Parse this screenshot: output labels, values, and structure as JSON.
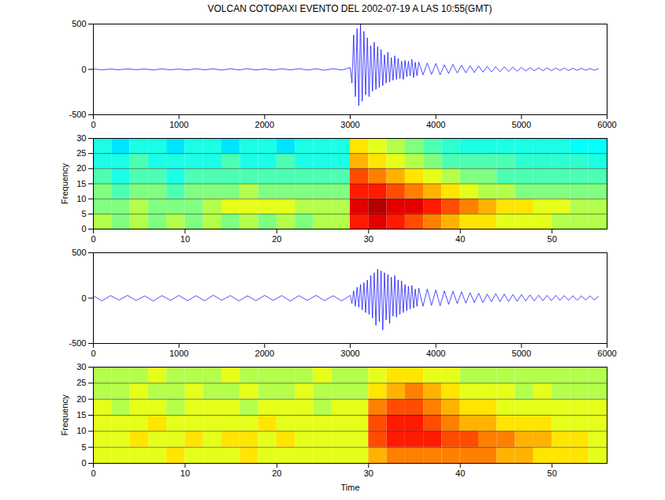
{
  "chart_data": [
    {
      "type": "line",
      "title": "VOLCAN COTOPAXI EVENTO DEL 2002-07-19 A LAS 10:55(GMT)",
      "x": [
        0,
        100,
        200,
        300,
        400,
        500,
        600,
        700,
        800,
        900,
        1000,
        1100,
        1200,
        1300,
        1400,
        1500,
        1600,
        1700,
        1800,
        1900,
        2000,
        2100,
        2200,
        2300,
        2400,
        2500,
        2600,
        2700,
        2800,
        2900,
        3000,
        3020,
        3040,
        3060,
        3080,
        3100,
        3120,
        3140,
        3160,
        3180,
        3200,
        3220,
        3240,
        3260,
        3280,
        3300,
        3320,
        3340,
        3360,
        3380,
        3400,
        3420,
        3440,
        3460,
        3480,
        3500,
        3520,
        3540,
        3560,
        3580,
        3600,
        3620,
        3640,
        3660,
        3680,
        3700,
        3720,
        3740,
        3760,
        3780,
        3800,
        3850,
        3900,
        3950,
        4000,
        4050,
        4100,
        4150,
        4200,
        4250,
        4300,
        4350,
        4400,
        4450,
        4500,
        4550,
        4600,
        4650,
        4700,
        4750,
        4800,
        4850,
        4900,
        4950,
        5000,
        5050,
        5100,
        5150,
        5200,
        5250,
        5300,
        5350,
        5400,
        5450,
        5500,
        5550,
        5600,
        5650,
        5700,
        5750,
        5800,
        5850,
        5900
      ],
      "values": [
        5,
        -6,
        4,
        -5,
        6,
        -4,
        5,
        -7,
        6,
        -5,
        4,
        -6,
        7,
        -5,
        6,
        -8,
        7,
        -6,
        8,
        -7,
        6,
        -8,
        7,
        -6,
        8,
        -7,
        6,
        -9,
        8,
        -7,
        20,
        -150,
        380,
        -300,
        450,
        -400,
        500,
        -350,
        420,
        -280,
        350,
        -300,
        260,
        -240,
        300,
        -220,
        250,
        -200,
        220,
        -180,
        160,
        -150,
        190,
        -140,
        130,
        -120,
        150,
        -110,
        120,
        -100,
        90,
        -110,
        100,
        -80,
        90,
        -70,
        110,
        -90,
        80,
        -70,
        80,
        -60,
        70,
        -55,
        65,
        -60,
        50,
        -45,
        55,
        -40,
        45,
        -38,
        40,
        -35,
        38,
        -30,
        32,
        -28,
        30,
        -25,
        28,
        -22,
        25,
        -20,
        22,
        -18,
        20,
        -16,
        18,
        -15,
        16,
        -14,
        15,
        -12,
        14,
        -12,
        12,
        -10,
        12,
        -10,
        10,
        -9,
        8
      ],
      "color": "#0000ff",
      "xlim": [
        0,
        6000
      ],
      "xticks": [
        0,
        1000,
        2000,
        3000,
        4000,
        5000,
        6000
      ],
      "ylim": [
        -500,
        500
      ],
      "yticks": [
        -500,
        0,
        500
      ]
    },
    {
      "type": "heatmap",
      "ylabel": "Frequency",
      "x_bins": [
        0,
        2,
        4,
        6,
        8,
        10,
        12,
        14,
        16,
        18,
        20,
        22,
        24,
        26,
        28,
        30,
        32,
        34,
        36,
        38,
        40,
        42,
        44,
        46,
        48,
        50,
        52,
        54,
        56
      ],
      "y_bins": [
        0,
        5,
        10,
        15,
        20,
        25,
        30
      ],
      "values": [
        [
          5.5,
          5,
          5.5,
          5,
          5.5,
          5,
          5.5,
          5,
          5.5,
          5,
          5.5,
          5,
          5.5,
          5.5,
          8.5,
          9,
          8.5,
          8,
          7.5,
          7,
          6.5,
          6.5,
          6,
          6,
          6,
          5.5,
          5.5,
          5.5
        ],
        [
          5,
          5,
          5.5,
          5,
          5,
          5,
          5.5,
          6,
          6,
          6,
          6,
          5.5,
          5.5,
          5.5,
          9,
          9.5,
          9,
          9,
          8.5,
          8,
          7.5,
          7,
          6.5,
          6.5,
          6,
          6,
          5.5,
          5.5
        ],
        [
          5,
          4.5,
          5,
          5,
          4.5,
          5,
          5,
          5,
          5.5,
          5,
          5,
          5,
          5,
          5,
          8.5,
          8.5,
          8,
          7.5,
          7,
          6.5,
          6,
          5.5,
          5.5,
          5,
          5,
          5,
          5,
          5
        ],
        [
          4.5,
          4,
          4.5,
          4.5,
          4,
          4.5,
          4.5,
          4.5,
          4.5,
          4.5,
          4.5,
          4.5,
          4.5,
          4.5,
          8,
          7.5,
          7,
          6.5,
          6,
          5.5,
          5,
          5,
          4.5,
          4.5,
          4.5,
          4.5,
          4.5,
          4.5
        ],
        [
          4,
          4,
          4.5,
          4,
          4,
          4,
          4,
          4.5,
          4,
          4,
          4.5,
          4,
          4,
          4,
          7,
          6.5,
          6,
          5.5,
          5,
          4.5,
          4.5,
          4.5,
          4.5,
          4.2,
          4.2,
          4.2,
          4.2,
          4
        ],
        [
          4,
          3.5,
          4,
          4,
          3.5,
          4,
          4,
          3.5,
          4,
          4,
          3.5,
          4,
          4,
          4,
          6.5,
          6,
          5.5,
          5,
          4.5,
          4.2,
          4,
          4,
          4,
          4,
          4,
          4,
          3.8,
          3.8
        ]
      ],
      "zlim": [
        0,
        10
      ],
      "xlim": [
        0,
        56
      ],
      "xticks": [
        0,
        10,
        20,
        30,
        40,
        50
      ],
      "ylim": [
        0,
        30
      ],
      "yticks": [
        0,
        5,
        10,
        15,
        20,
        25,
        30
      ],
      "grid": true
    },
    {
      "type": "line",
      "x": [
        0,
        100,
        200,
        300,
        400,
        500,
        600,
        700,
        800,
        900,
        1000,
        1100,
        1200,
        1300,
        1400,
        1500,
        1600,
        1700,
        1800,
        1900,
        2000,
        2100,
        2200,
        2300,
        2400,
        2500,
        2600,
        2700,
        2800,
        2900,
        3000,
        3020,
        3040,
        3060,
        3080,
        3100,
        3120,
        3140,
        3160,
        3180,
        3200,
        3220,
        3240,
        3260,
        3280,
        3300,
        3320,
        3340,
        3360,
        3380,
        3400,
        3420,
        3440,
        3460,
        3480,
        3500,
        3520,
        3540,
        3560,
        3580,
        3600,
        3620,
        3640,
        3660,
        3680,
        3700,
        3720,
        3740,
        3760,
        3780,
        3800,
        3850,
        3900,
        3950,
        4000,
        4050,
        4100,
        4150,
        4200,
        4250,
        4300,
        4350,
        4400,
        4450,
        4500,
        4550,
        4600,
        4650,
        4700,
        4750,
        4800,
        4850,
        4900,
        4950,
        5000,
        5050,
        5100,
        5150,
        5200,
        5250,
        5300,
        5350,
        5400,
        5450,
        5500,
        5550,
        5600,
        5650,
        5700,
        5750,
        5800,
        5850,
        5900
      ],
      "values": [
        25,
        -30,
        28,
        -22,
        30,
        -27,
        24,
        -32,
        28,
        -25,
        30,
        -28,
        26,
        -30,
        32,
        -24,
        28,
        -30,
        25,
        -28,
        30,
        -26,
        28,
        -32,
        27,
        -25,
        30,
        -28,
        26,
        -30,
        30,
        -60,
        80,
        -90,
        120,
        -100,
        150,
        -130,
        170,
        -160,
        200,
        -180,
        250,
        -220,
        280,
        -300,
        320,
        -260,
        300,
        -350,
        280,
        -240,
        260,
        -280,
        230,
        -200,
        250,
        -210,
        200,
        -180,
        190,
        -160,
        150,
        -140,
        130,
        -120,
        140,
        -110,
        100,
        -90,
        110,
        -90,
        100,
        -80,
        90,
        -85,
        80,
        -70,
        75,
        -60,
        70,
        -55,
        60,
        -50,
        55,
        -50,
        45,
        -40,
        50,
        -40,
        45,
        -38,
        40,
        -35,
        38,
        -32,
        35,
        -30,
        32,
        -28,
        30,
        -28,
        30,
        -25,
        28,
        -25,
        26,
        -24,
        25,
        -22,
        24,
        -20,
        20
      ],
      "color": "#0000ff",
      "xlim": [
        0,
        6000
      ],
      "xticks": [
        0,
        1000,
        2000,
        3000,
        4000,
        5000,
        6000
      ],
      "ylim": [
        -500,
        500
      ],
      "yticks": [
        -500,
        0,
        500
      ]
    },
    {
      "type": "heatmap",
      "ylabel": "Frequency",
      "xlabel": "Time",
      "x_bins": [
        0,
        2,
        4,
        6,
        8,
        10,
        12,
        14,
        16,
        18,
        20,
        22,
        24,
        26,
        28,
        30,
        32,
        34,
        36,
        38,
        40,
        42,
        44,
        46,
        48,
        50,
        52,
        54,
        56
      ],
      "y_bins": [
        0,
        5,
        10,
        15,
        20,
        25,
        30
      ],
      "values": [
        [
          6,
          6,
          6,
          6,
          6.5,
          6,
          6,
          6,
          6.5,
          6,
          6,
          6,
          6,
          6,
          6,
          7,
          7.5,
          7.5,
          7.5,
          7.5,
          7.5,
          7.5,
          7,
          7,
          6.5,
          6.5,
          6.5,
          6
        ],
        [
          6,
          6,
          6.5,
          6,
          6,
          6.5,
          6,
          6.5,
          6.5,
          6,
          6.5,
          6,
          6,
          6,
          6,
          8,
          8.5,
          8.5,
          8.5,
          8,
          8,
          7.5,
          7.5,
          7,
          7,
          6.5,
          6.5,
          6
        ],
        [
          6,
          6,
          6,
          6.5,
          6,
          6,
          6,
          6,
          6,
          6.5,
          6,
          6,
          6,
          6,
          6,
          8,
          8.5,
          8.5,
          8,
          7.5,
          7,
          7,
          6.5,
          6.5,
          6.5,
          6,
          6,
          6
        ],
        [
          6,
          5.5,
          6,
          6,
          5.5,
          6,
          6,
          6,
          5.5,
          6,
          6,
          6,
          5.5,
          6,
          6,
          7.5,
          8,
          8,
          7.5,
          7,
          6.5,
          6.5,
          6,
          6,
          6,
          6,
          6,
          6
        ],
        [
          5.5,
          5.5,
          6,
          5.5,
          5.5,
          6,
          5.5,
          5.5,
          6,
          5.5,
          5.5,
          6,
          5.5,
          5.5,
          5.5,
          6.5,
          7,
          7.5,
          7,
          6.5,
          6,
          6,
          6,
          5.5,
          6,
          5.5,
          5.5,
          5.5
        ],
        [
          5.5,
          5.5,
          5.5,
          6,
          5.5,
          5.5,
          5.5,
          6,
          5.5,
          5.5,
          5.5,
          5.5,
          6,
          5.5,
          5.5,
          6,
          6.5,
          6.5,
          6,
          6,
          5.5,
          5.5,
          5.5,
          5.5,
          5.5,
          5.5,
          5.5,
          5.5
        ]
      ],
      "zlim": [
        0,
        10
      ],
      "xlim": [
        0,
        56
      ],
      "xticks": [
        0,
        10,
        20,
        30,
        40,
        50
      ],
      "ylim": [
        0,
        30
      ],
      "yticks": [
        0,
        5,
        10,
        15,
        20,
        25,
        30
      ],
      "grid": true
    }
  ]
}
